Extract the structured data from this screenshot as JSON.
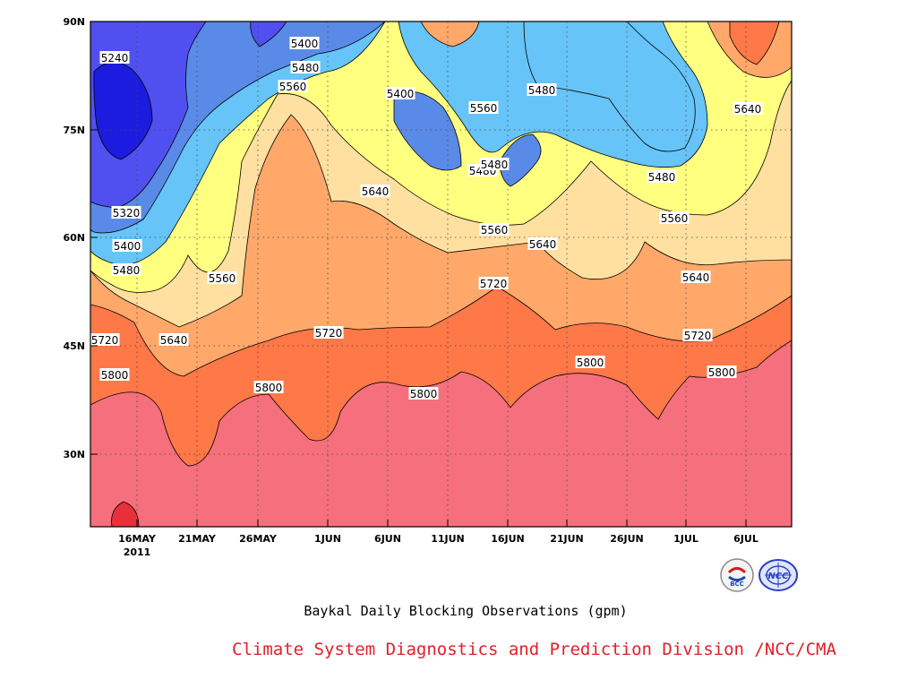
{
  "chart_data": {
    "type": "contour",
    "title": "Baykal Daily Blocking Observations (gpm)",
    "source": "Climate System Diagnostics and Prediction Division /NCC/CMA",
    "x_ticks": [
      "16MAY",
      "21MAY",
      "26MAY",
      "1JUN",
      "6JUN",
      "11JUN",
      "16JUN",
      "21JUN",
      "26JUN",
      "1JUL",
      "6JUL"
    ],
    "x_year_label": "2011",
    "y_ticks": [
      "30N",
      "45N",
      "60N",
      "75N",
      "90N"
    ],
    "y_range_deg": [
      20,
      90
    ],
    "levels": [
      5240,
      5320,
      5400,
      5480,
      5560,
      5640,
      5720,
      5800,
      5880
    ],
    "level_colors": {
      "below_5240": "#1c1ce0",
      "5240_5320": "#5050f0",
      "5320_5400": "#5a8ae8",
      "5400_5480": "#66c4f8",
      "5480_5560": "#ffff80",
      "5560_5640": "#ffe0a0",
      "5640_5720": "#ffa86a",
      "5720_5800": "#ff7848",
      "5800_5880": "#f5707c",
      "above_5880": "#e8303a"
    },
    "contour_labels": [
      {
        "value": "5240"
      },
      {
        "value": "5320"
      },
      {
        "value": "5400"
      },
      {
        "value": "5400"
      },
      {
        "value": "5400"
      },
      {
        "value": "5480"
      },
      {
        "value": "5480"
      },
      {
        "value": "5480"
      },
      {
        "value": "5480"
      },
      {
        "value": "5480"
      },
      {
        "value": "5480"
      },
      {
        "value": "5560"
      },
      {
        "value": "5560"
      },
      {
        "value": "5560"
      },
      {
        "value": "5560"
      },
      {
        "value": "5560"
      },
      {
        "value": "5640"
      },
      {
        "value": "5640"
      },
      {
        "value": "5640"
      },
      {
        "value": "5640"
      },
      {
        "value": "5640"
      },
      {
        "value": "5720"
      },
      {
        "value": "5720"
      },
      {
        "value": "5720"
      },
      {
        "value": "5720"
      },
      {
        "value": "5800"
      },
      {
        "value": "5800"
      },
      {
        "value": "5800"
      },
      {
        "value": "5800"
      },
      {
        "value": "5800"
      }
    ],
    "grid": true
  },
  "logos": {
    "left": "bcc-logo",
    "right": "ncc-logo",
    "left_text": "BCC",
    "right_text": "NCC"
  }
}
